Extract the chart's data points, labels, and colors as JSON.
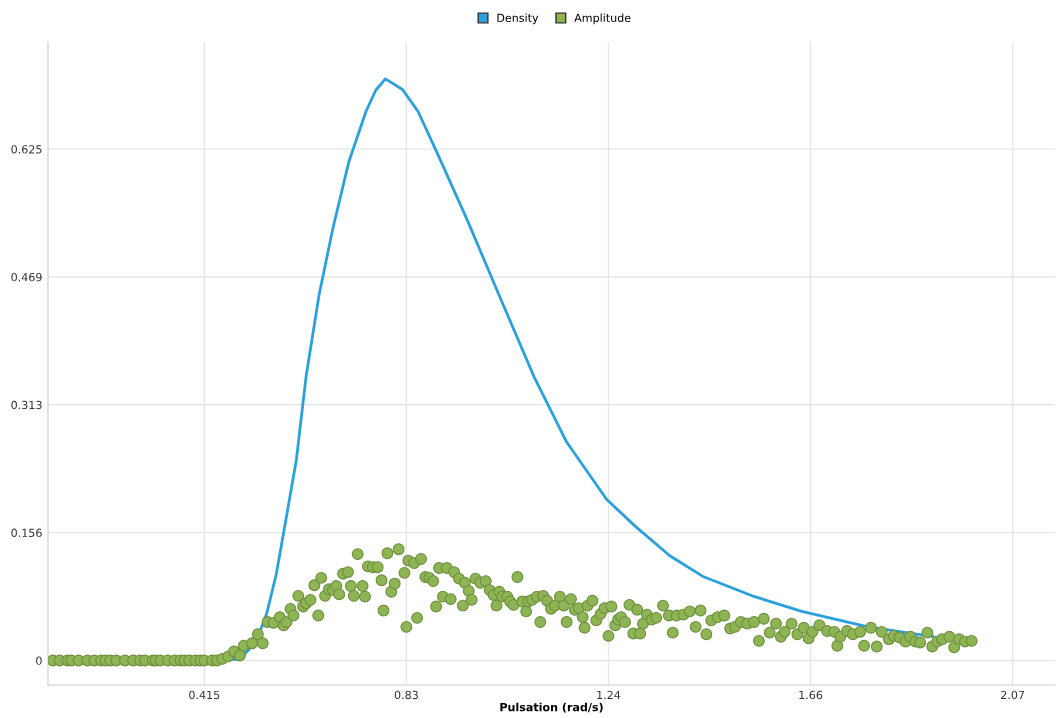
{
  "chart_data": {
    "type": "line",
    "xlabel": "Pulsation (rad/s)",
    "xlim": [
      0.094,
      2.162
    ],
    "ylim": [
      -0.03,
      0.756
    ],
    "xticks": [
      {
        "value": 0.415,
        "label": "0.415"
      },
      {
        "value": 0.83,
        "label": "0.83"
      },
      {
        "value": 1.245,
        "label": "1.24"
      },
      {
        "value": 1.66,
        "label": "1.66"
      },
      {
        "value": 2.075,
        "label": "2.07"
      }
    ],
    "yticks": [
      0,
      {
        "value": 0.15625,
        "label": "0.156"
      },
      {
        "value": 0.3125,
        "label": "0.313"
      },
      {
        "value": 0.46875,
        "label": "0.469"
      },
      {
        "value": 0.625,
        "label": "0.625"
      }
    ],
    "grid": true,
    "legend": "top",
    "series": [
      {
        "name": "Density",
        "color": "#2aa0dc",
        "marker": "none",
        "line_style": "solid",
        "x": [
          0.104,
          0.421,
          0.456,
          0.488,
          0.509,
          0.527,
          0.543,
          0.563,
          0.584,
          0.604,
          0.624,
          0.651,
          0.679,
          0.712,
          0.747,
          0.767,
          0.787,
          0.822,
          0.854,
          0.895,
          0.956,
          1.025,
          1.092,
          1.159,
          1.241,
          1.302,
          1.371,
          1.438,
          1.54,
          1.642,
          1.778,
          1.912
        ],
        "values": [
          0,
          0,
          0,
          0.002,
          0.015,
          0.032,
          0.057,
          0.106,
          0.177,
          0.245,
          0.347,
          0.448,
          0.528,
          0.61,
          0.671,
          0.697,
          0.711,
          0.698,
          0.671,
          0.618,
          0.537,
          0.44,
          0.347,
          0.267,
          0.197,
          0.163,
          0.128,
          0.103,
          0.079,
          0.06,
          0.041,
          0.029
        ]
      },
      {
        "name": "Amplitude",
        "type": "scatter",
        "color": "#8db554",
        "marker": "circle",
        "x": [
          0.104,
          0.118,
          0.134,
          0.142,
          0.157,
          0.175,
          0.189,
          0.203,
          0.212,
          0.222,
          0.234,
          0.252,
          0.269,
          0.283,
          0.293,
          0.309,
          0.315,
          0.325,
          0.34,
          0.354,
          0.366,
          0.374,
          0.384,
          0.397,
          0.407,
          0.415,
          0.431,
          0.441,
          0.452,
          0.464,
          0.476,
          0.488,
          0.496,
          0.513,
          0.525,
          0.535,
          0.545,
          0.557,
          0.57,
          0.578,
          0.584,
          0.592,
          0.598,
          0.608,
          0.618,
          0.624,
          0.633,
          0.641,
          0.649,
          0.655,
          0.663,
          0.671,
          0.679,
          0.686,
          0.692,
          0.7,
          0.71,
          0.716,
          0.722,
          0.73,
          0.74,
          0.745,
          0.751,
          0.761,
          0.771,
          0.779,
          0.783,
          0.791,
          0.799,
          0.806,
          0.814,
          0.826,
          0.83,
          0.834,
          0.846,
          0.852,
          0.86,
          0.869,
          0.877,
          0.885,
          0.891,
          0.897,
          0.905,
          0.913,
          0.921,
          0.928,
          0.938,
          0.946,
          0.95,
          0.958,
          0.964,
          0.972,
          0.982,
          0.993,
          1.001,
          1.009,
          1.015,
          1.021,
          1.027,
          1.037,
          1.043,
          1.05,
          1.058,
          1.068,
          1.076,
          1.08,
          1.088,
          1.098,
          1.105,
          1.111,
          1.119,
          1.127,
          1.135,
          1.145,
          1.153,
          1.159,
          1.168,
          1.176,
          1.184,
          1.192,
          1.196,
          1.202,
          1.212,
          1.22,
          1.229,
          1.237,
          1.245,
          1.251,
          1.259,
          1.265,
          1.271,
          1.279,
          1.288,
          1.296,
          1.304,
          1.31,
          1.316,
          1.324,
          1.334,
          1.343,
          1.357,
          1.369,
          1.377,
          1.385,
          1.399,
          1.412,
          1.424,
          1.434,
          1.446,
          1.456,
          1.469,
          1.483,
          1.495,
          1.505,
          1.517,
          1.53,
          1.544,
          1.554,
          1.564,
          1.576,
          1.589,
          1.599,
          1.607,
          1.621,
          1.633,
          1.646,
          1.656,
          1.664,
          1.678,
          1.694,
          1.709,
          1.715,
          1.721,
          1.735,
          1.747,
          1.762,
          1.77,
          1.784,
          1.796,
          1.806,
          1.821,
          1.831,
          1.843,
          1.855,
          1.865,
          1.875,
          1.885,
          1.9,
          1.91,
          1.92,
          1.93,
          1.945,
          1.955,
          1.965,
          1.977,
          1.991
        ],
        "values": [
          0,
          0,
          0,
          0,
          0,
          0,
          0,
          0,
          0,
          0,
          0,
          0,
          0,
          0,
          0,
          0,
          0,
          0,
          0,
          0,
          0,
          0,
          0,
          0,
          0,
          0,
          0,
          0,
          0.002,
          0.005,
          0.011,
          0.006,
          0.018,
          0.021,
          0.032,
          0.021,
          0.047,
          0.046,
          0.053,
          0.043,
          0.047,
          0.063,
          0.055,
          0.079,
          0.066,
          0.07,
          0.074,
          0.092,
          0.055,
          0.101,
          0.079,
          0.087,
          0.086,
          0.091,
          0.081,
          0.106,
          0.108,
          0.091,
          0.079,
          0.13,
          0.091,
          0.078,
          0.115,
          0.114,
          0.114,
          0.098,
          0.061,
          0.131,
          0.084,
          0.094,
          0.136,
          0.107,
          0.041,
          0.122,
          0.119,
          0.052,
          0.124,
          0.102,
          0.101,
          0.097,
          0.066,
          0.113,
          0.078,
          0.113,
          0.075,
          0.108,
          0.1,
          0.067,
          0.095,
          0.085,
          0.074,
          0.1,
          0.095,
          0.097,
          0.086,
          0.08,
          0.067,
          0.084,
          0.078,
          0.078,
          0.072,
          0.068,
          0.102,
          0.072,
          0.06,
          0.072,
          0.074,
          0.078,
          0.047,
          0.079,
          0.073,
          0.063,
          0.067,
          0.078,
          0.067,
          0.047,
          0.075,
          0.062,
          0.064,
          0.053,
          0.04,
          0.067,
          0.073,
          0.049,
          0.057,
          0.064,
          0.03,
          0.066,
          0.043,
          0.05,
          0.053,
          0.047,
          0.068,
          0.033,
          0.062,
          0.033,
          0.045,
          0.056,
          0.05,
          0.052,
          0.067,
          0.055,
          0.034,
          0.055,
          0.056,
          0.06,
          0.041,
          0.061,
          0.032,
          0.049,
          0.053,
          0.055,
          0.039,
          0.041,
          0.047,
          0.045,
          0.047,
          0.024,
          0.051,
          0.034,
          0.045,
          0.029,
          0.035,
          0.045,
          0.032,
          0.04,
          0.027,
          0.035,
          0.043,
          0.036,
          0.035,
          0.018,
          0.029,
          0.036,
          0.032,
          0.035,
          0.018,
          0.04,
          0.017,
          0.035,
          0.026,
          0.03,
          0.028,
          0.023,
          0.029,
          0.023,
          0.022,
          0.034,
          0.017,
          0.023,
          0.026,
          0.029,
          0.016,
          0.026,
          0.023,
          0.024
        ]
      }
    ]
  }
}
